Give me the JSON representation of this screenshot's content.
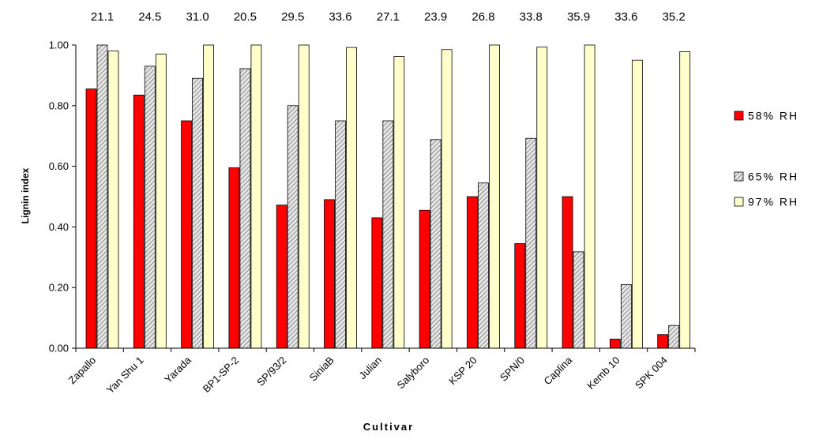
{
  "chart_data": {
    "type": "bar",
    "ylabel": "Lignin index",
    "xlabel": "Cultivar",
    "ylim": [
      0,
      1.0
    ],
    "yticks": [
      "0.00",
      "0.20",
      "0.40",
      "0.60",
      "0.80",
      "1.00"
    ],
    "ytick_values": [
      0,
      0.2,
      0.4,
      0.6,
      0.8,
      1.0
    ],
    "grid": false,
    "legend_position": "right",
    "categories": [
      "Zapallo",
      "Yan Shu 1",
      "Yarada",
      "BP1-SP-2",
      "SP/93/2",
      "SiniaB",
      "Julian",
      "Salyboro",
      "KSP 20",
      "SPN/0",
      "Caplina",
      "Kemb 10",
      "SPK 004"
    ],
    "top_labels": [
      "21.1",
      "24.5",
      "31.0",
      "20.5",
      "29.5",
      "33.6",
      "27.1",
      "23.9",
      "26.8",
      "33.8",
      "35.9",
      "33.6",
      "35.2"
    ],
    "series": [
      {
        "name": "58% RH",
        "color": "#ff0000",
        "pattern": "solid",
        "values": [
          0.855,
          0.835,
          0.75,
          0.595,
          0.472,
          0.49,
          0.43,
          0.455,
          0.5,
          0.345,
          0.5,
          0.03,
          0.045
        ]
      },
      {
        "name": "65% RH",
        "color": "#c8c8c8",
        "pattern": "hatch",
        "values": [
          1.0,
          0.93,
          0.89,
          0.922,
          0.8,
          0.75,
          0.75,
          0.688,
          0.545,
          0.692,
          0.318,
          0.21,
          0.075
        ]
      },
      {
        "name": "97% RH",
        "color": "#ffffcc",
        "pattern": "solid",
        "values": [
          0.98,
          0.97,
          1.0,
          1.0,
          1.0,
          0.992,
          0.962,
          0.985,
          1.0,
          0.993,
          1.0,
          0.95,
          0.978
        ]
      }
    ]
  }
}
